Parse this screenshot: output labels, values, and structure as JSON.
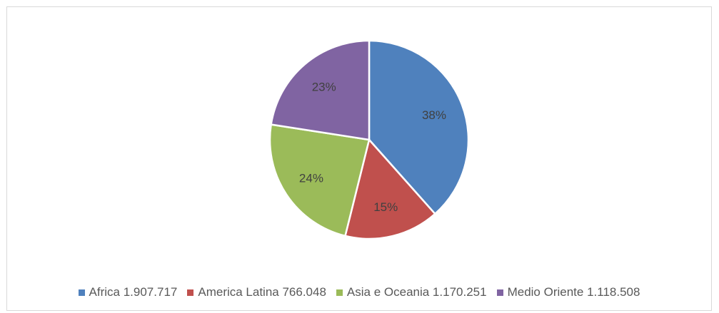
{
  "chart_data": {
    "type": "pie",
    "title": "",
    "categories": [
      "Africa",
      "America Latina",
      "Asia e Oceania",
      "Medio Oriente"
    ],
    "values": [
      1907717,
      766048,
      1170251,
      1118508
    ],
    "percent_labels": [
      "38%",
      "15%",
      "24%",
      "23%"
    ],
    "colors": [
      "#4f81bd",
      "#c0504d",
      "#9bbb59",
      "#8064a2"
    ],
    "start_angle_deg": 0,
    "direction": "clockwise",
    "legend_position": "bottom",
    "legend": [
      {
        "label": "Africa 1.907.717"
      },
      {
        "label": "America Latina 766.048"
      },
      {
        "label": "Asia e Oceania 1.170.251"
      },
      {
        "label": "Medio Oriente 1.118.508"
      }
    ]
  }
}
